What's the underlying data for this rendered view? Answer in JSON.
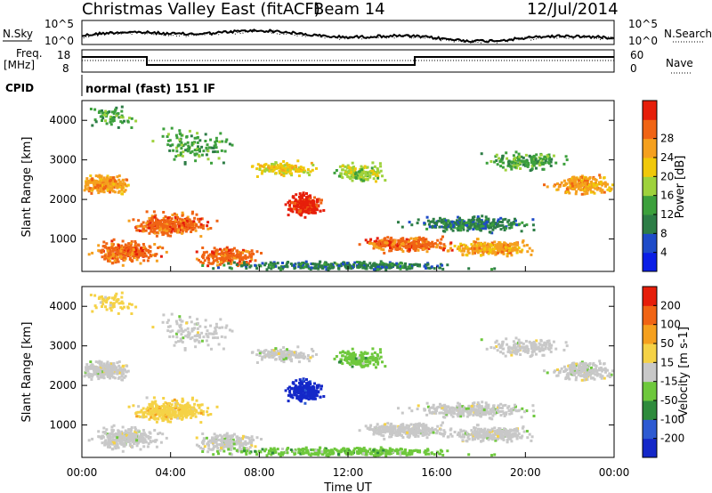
{
  "header": {
    "radar": "Christmas Valley East (fitACF)",
    "beam": "Beam 14",
    "date": "12/Jul/2014"
  },
  "noise_panel": {
    "left_label": "N.Sky",
    "right_label": "N.Search",
    "left_ticks": [
      "10^5",
      "10^0"
    ],
    "right_ticks": [
      "10^5",
      "10^0"
    ]
  },
  "freq_panel": {
    "left_label_1": "Freq.",
    "left_label_2": "[MHz]",
    "right_label": "Nave",
    "left_ticks": [
      "18",
      "8"
    ],
    "right_ticks": [
      "60",
      "0"
    ]
  },
  "cpid": {
    "label": "CPID",
    "value": "normal (fast) 151 IF"
  },
  "chart_data": [
    {
      "type": "heatmap",
      "name": "Power",
      "ylabel": "Slant Range [km]",
      "xlim": [
        "00:00",
        "24:00"
      ],
      "ylim": [
        180,
        4500
      ],
      "yticks": [
        "1000",
        "2000",
        "3000",
        "4000"
      ],
      "xticks": [
        "00:00",
        "04:00",
        "08:00",
        "12:00",
        "16:00",
        "20:00",
        "00:00"
      ],
      "colorbar": {
        "label": "Power [dB]",
        "ticks": [
          "4",
          "8",
          "12",
          "16",
          "20",
          "24",
          "28"
        ],
        "colors": [
          "#0a1ee6",
          "#1e4bc8",
          "#2d7d46",
          "#3ca03c",
          "#9ed23c",
          "#f0c80a",
          "#f5a01e",
          "#f06414",
          "#e61e0a"
        ]
      }
    },
    {
      "type": "heatmap",
      "name": "Velocity",
      "ylabel": "Slant Range [km]",
      "xlabel": "Time UT",
      "xlim": [
        "00:00",
        "24:00"
      ],
      "ylim": [
        180,
        4500
      ],
      "yticks": [
        "1000",
        "2000",
        "3000",
        "4000"
      ],
      "xticks": [
        "00:00",
        "04:00",
        "08:00",
        "12:00",
        "16:00",
        "20:00",
        "00:00"
      ],
      "colorbar": {
        "label": "Velocity [m s-1]",
        "ticks": [
          "200",
          "100",
          "50",
          "15",
          "-15",
          "-50",
          "-100",
          "-200"
        ],
        "colors": [
          "#1428c8",
          "#2d5ad2",
          "#2e8b3c",
          "#6ec83c",
          "#c8c8c8",
          "#f5d246",
          "#f5a01e",
          "#f06414",
          "#e61e0a"
        ]
      }
    }
  ]
}
